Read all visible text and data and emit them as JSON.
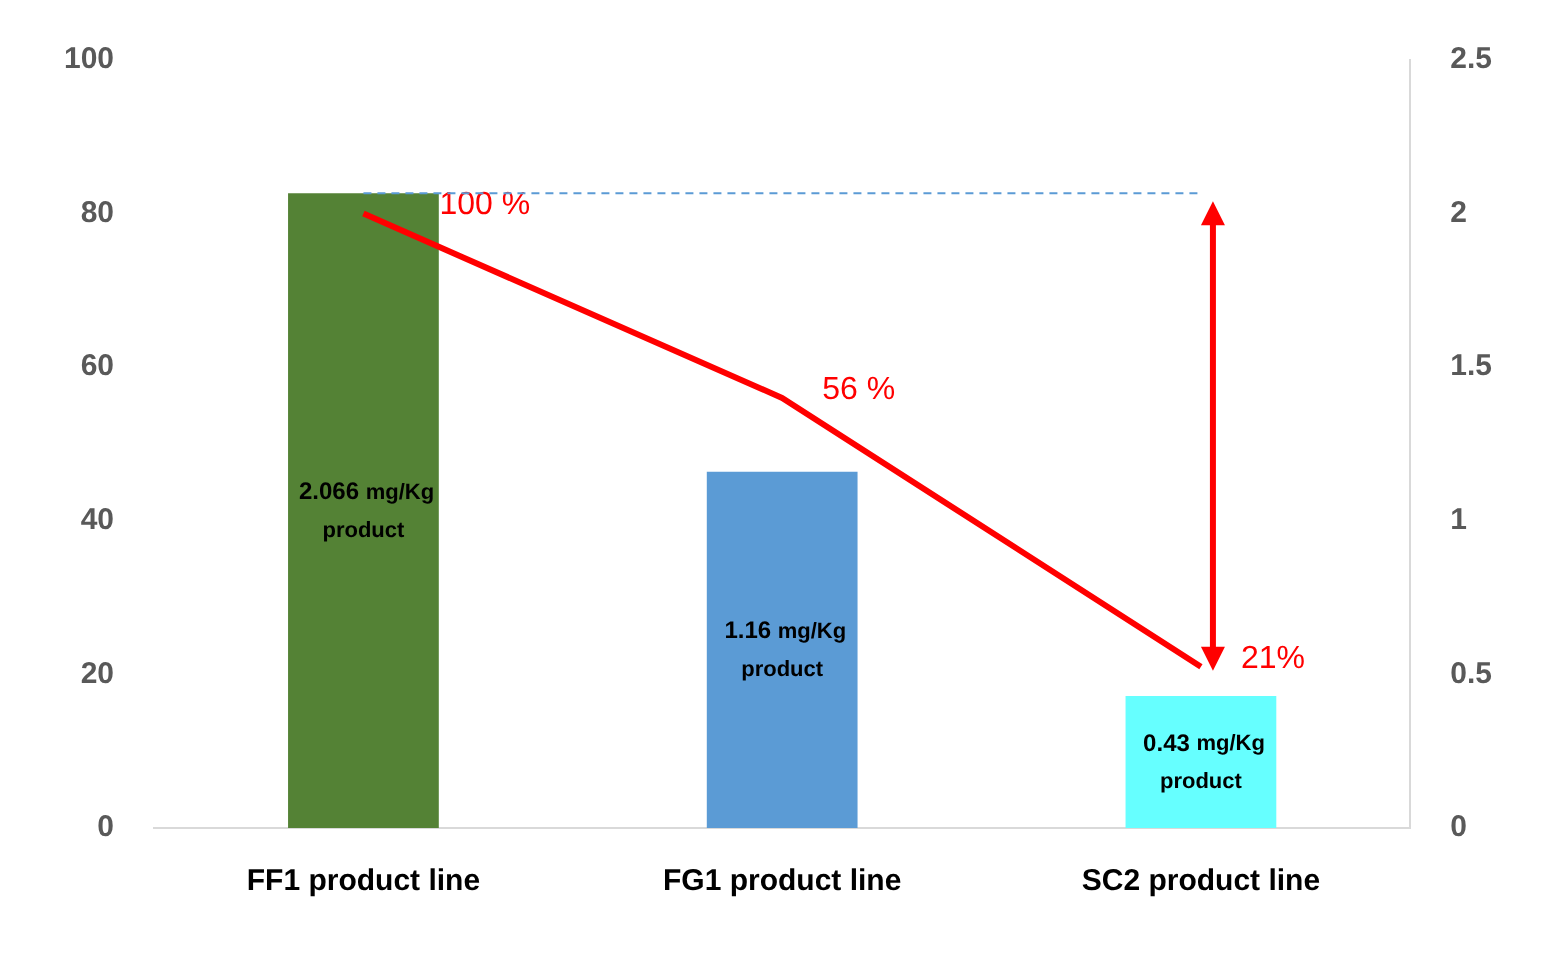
{
  "chart_data": {
    "type": "bar",
    "categories": [
      "FF1 product line",
      "FG1 product line",
      "SC2 product line"
    ],
    "series": [
      {
        "axis": "y2",
        "colors": [
          "#548235",
          "#5b9bd5",
          "#66ffff"
        ],
        "values": [
          2.066,
          1.16,
          0.43
        ],
        "value_labels": [
          "2.066 mg/Kg product",
          "1.16 mg/Kg product",
          "0.43 mg/Kg product"
        ]
      },
      {
        "type": "line",
        "axis": "y",
        "color": "#ff0000",
        "values": [
          80,
          56,
          21
        ]
      }
    ],
    "annotations": [
      {
        "text": "100 %",
        "x": "FF1 product line",
        "y": 80
      },
      {
        "text": "56 %",
        "x": "FG1 product line",
        "y": 56
      },
      {
        "text": "21%",
        "x": "SC2 product line",
        "y": 21
      }
    ],
    "ylim": [
      0,
      100
    ],
    "yticks": [
      0,
      20,
      40,
      60,
      80,
      100
    ],
    "y2lim": [
      0,
      2.5
    ],
    "y2ticks": [
      0,
      0.5,
      1,
      1.5,
      2,
      2.5
    ],
    "ref_lines": [
      {
        "axis": "y2",
        "value": 2.066,
        "color": "#5b9bd5",
        "line_style": "dashed"
      }
    ],
    "grid": false,
    "legend": false,
    "marker": "none"
  }
}
